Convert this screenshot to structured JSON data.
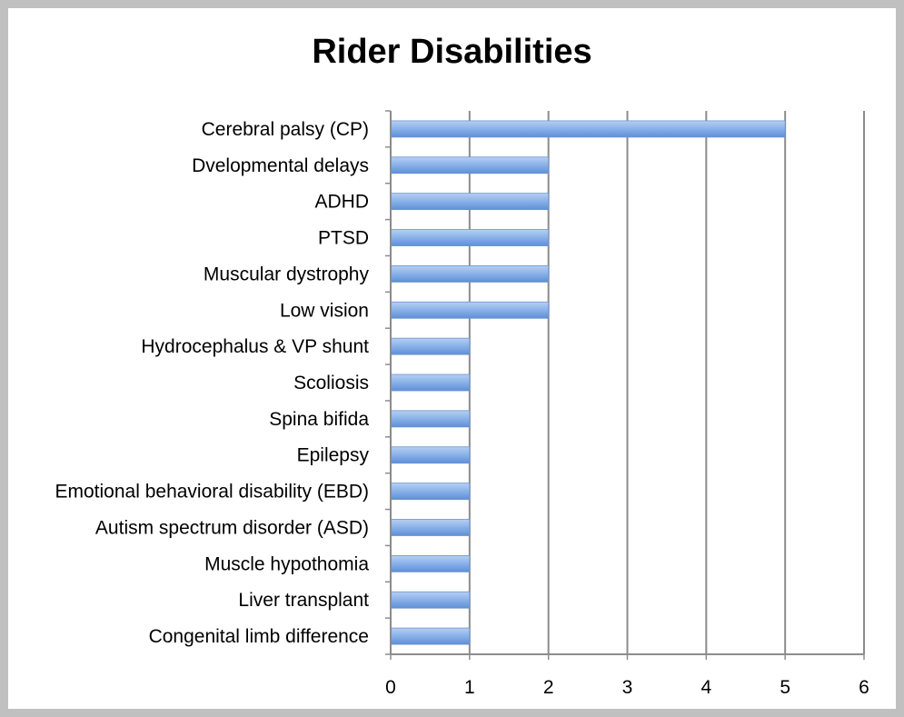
{
  "chart_data": {
    "type": "bar",
    "orientation": "horizontal",
    "title": "Rider Disabilities",
    "xlabel": "",
    "ylabel": "",
    "categories": [
      "Cerebral palsy (CP)",
      "Dvelopmental delays",
      "ADHD",
      "PTSD",
      "Muscular dystrophy",
      "Low vision",
      "Hydrocephalus & VP shunt",
      "Scoliosis",
      "Spina bifida",
      "Epilepsy",
      "Emotional behavioral disability (EBD)",
      "Autism spectrum disorder (ASD)",
      "Muscle hypothomia",
      "Liver transplant",
      "Congenital limb difference"
    ],
    "values": [
      5,
      2,
      2,
      2,
      2,
      2,
      1,
      1,
      1,
      1,
      1,
      1,
      1,
      1,
      1
    ],
    "xlim": [
      0,
      6
    ],
    "xticks": [
      "0",
      "1",
      "2",
      "3",
      "4",
      "5",
      "6"
    ],
    "grid": true,
    "legend": "none",
    "bar_color": "#7fa8e0"
  }
}
